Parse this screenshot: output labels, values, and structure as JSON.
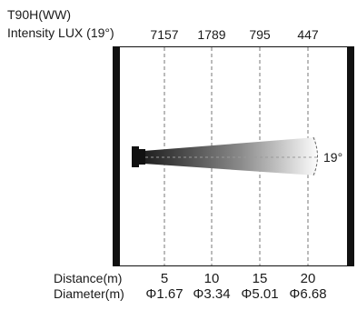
{
  "header": {
    "title": "T90H(WW)",
    "subtitle": "Intensity LUX (19°)"
  },
  "beam": {
    "angle_label": "19°",
    "lux_values": [
      "7157",
      "1789",
      "795",
      "447"
    ],
    "distance_label": "Distance(m)",
    "distances": [
      "5",
      "10",
      "15",
      "20"
    ],
    "diameter_label": "Diameter(m)",
    "diameters": [
      "Φ1.67",
      "Φ3.34",
      "Φ5.01",
      "Φ6.68"
    ]
  },
  "colors": {
    "frame": "#111111",
    "beam_dark": "#1e1e1e",
    "beam_light": "#ffffff",
    "dashed_line": "#777777"
  }
}
